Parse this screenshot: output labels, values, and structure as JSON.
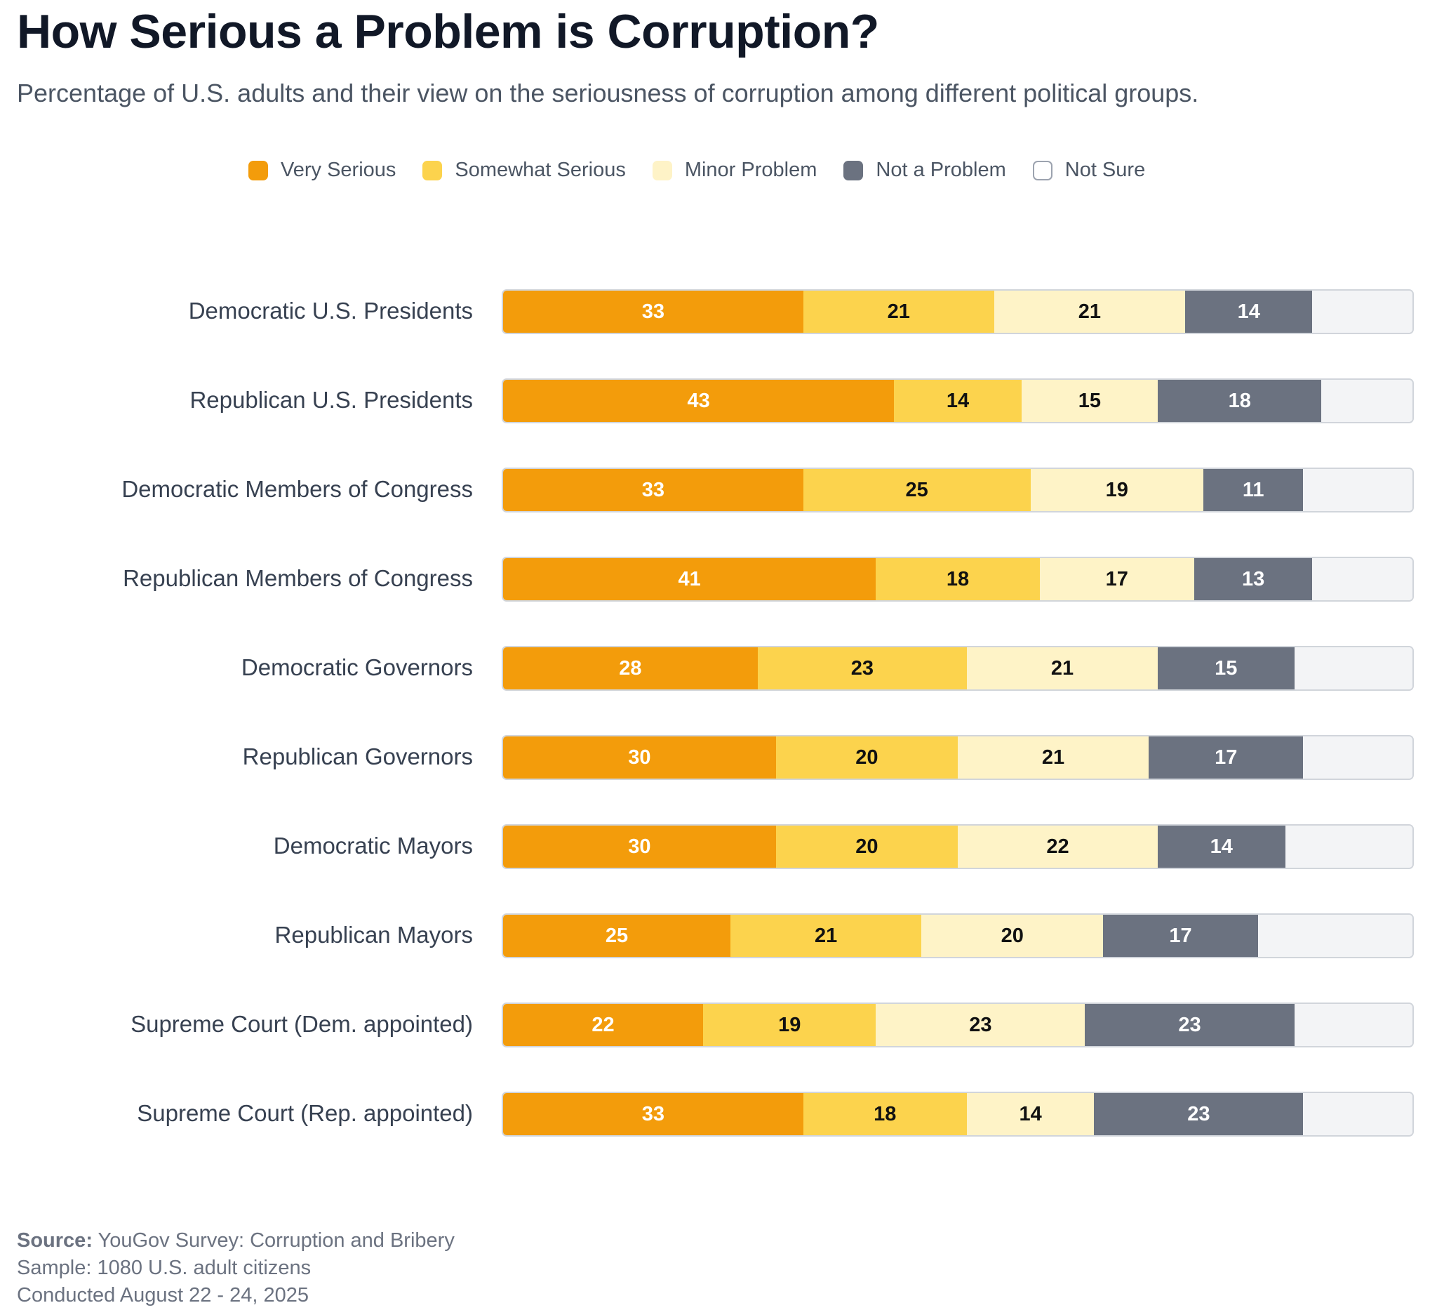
{
  "chart_data": {
    "type": "bar",
    "orientation": "horizontal",
    "stacked": true,
    "title": "How Serious a Problem is Corruption?",
    "subtitle": "Percentage of U.S. adults and their view on the seriousness of corruption among different political groups.",
    "xlim": [
      0,
      100
    ],
    "legend_position": "top-center",
    "categories": [
      "Democratic U.S. Presidents",
      "Republican U.S. Presidents",
      "Democratic Members of Congress",
      "Republican Members of Congress",
      "Democratic Governors",
      "Republican Governors",
      "Democratic Mayors",
      "Republican Mayors",
      "Supreme Court (Dem. appointed)",
      "Supreme Court (Rep. appointed)"
    ],
    "series": [
      {
        "name": "Very Serious",
        "color": "#f39c0b",
        "text_color": "#ffffff",
        "values": [
          33,
          43,
          33,
          41,
          28,
          30,
          30,
          25,
          22,
          33
        ],
        "show_labels": true
      },
      {
        "name": "Somewhat Serious",
        "color": "#fcd34d",
        "text_color": "#111111",
        "values": [
          21,
          14,
          25,
          18,
          23,
          20,
          20,
          21,
          19,
          18
        ],
        "show_labels": true
      },
      {
        "name": "Minor Problem",
        "color": "#fef3c7",
        "text_color": "#111111",
        "values": [
          21,
          15,
          19,
          17,
          21,
          21,
          22,
          20,
          23,
          14
        ],
        "show_labels": true
      },
      {
        "name": "Not a Problem",
        "color": "#6b7280",
        "text_color": "#ffffff",
        "values": [
          14,
          18,
          11,
          13,
          15,
          17,
          14,
          17,
          23,
          23
        ],
        "show_labels": true
      },
      {
        "name": "Not Sure",
        "color": "#f3f4f6",
        "text_color": "#111111",
        "values": [
          11,
          10,
          12,
          11,
          13,
          12,
          14,
          17,
          13,
          12
        ],
        "show_labels": false
      }
    ]
  },
  "footer": {
    "source_label": "Source:",
    "source_text": " YouGov Survey: Corruption and Bribery",
    "sample": "Sample: 1080 U.S. adult citizens",
    "conducted": "Conducted August 22 - 24, 2025"
  }
}
